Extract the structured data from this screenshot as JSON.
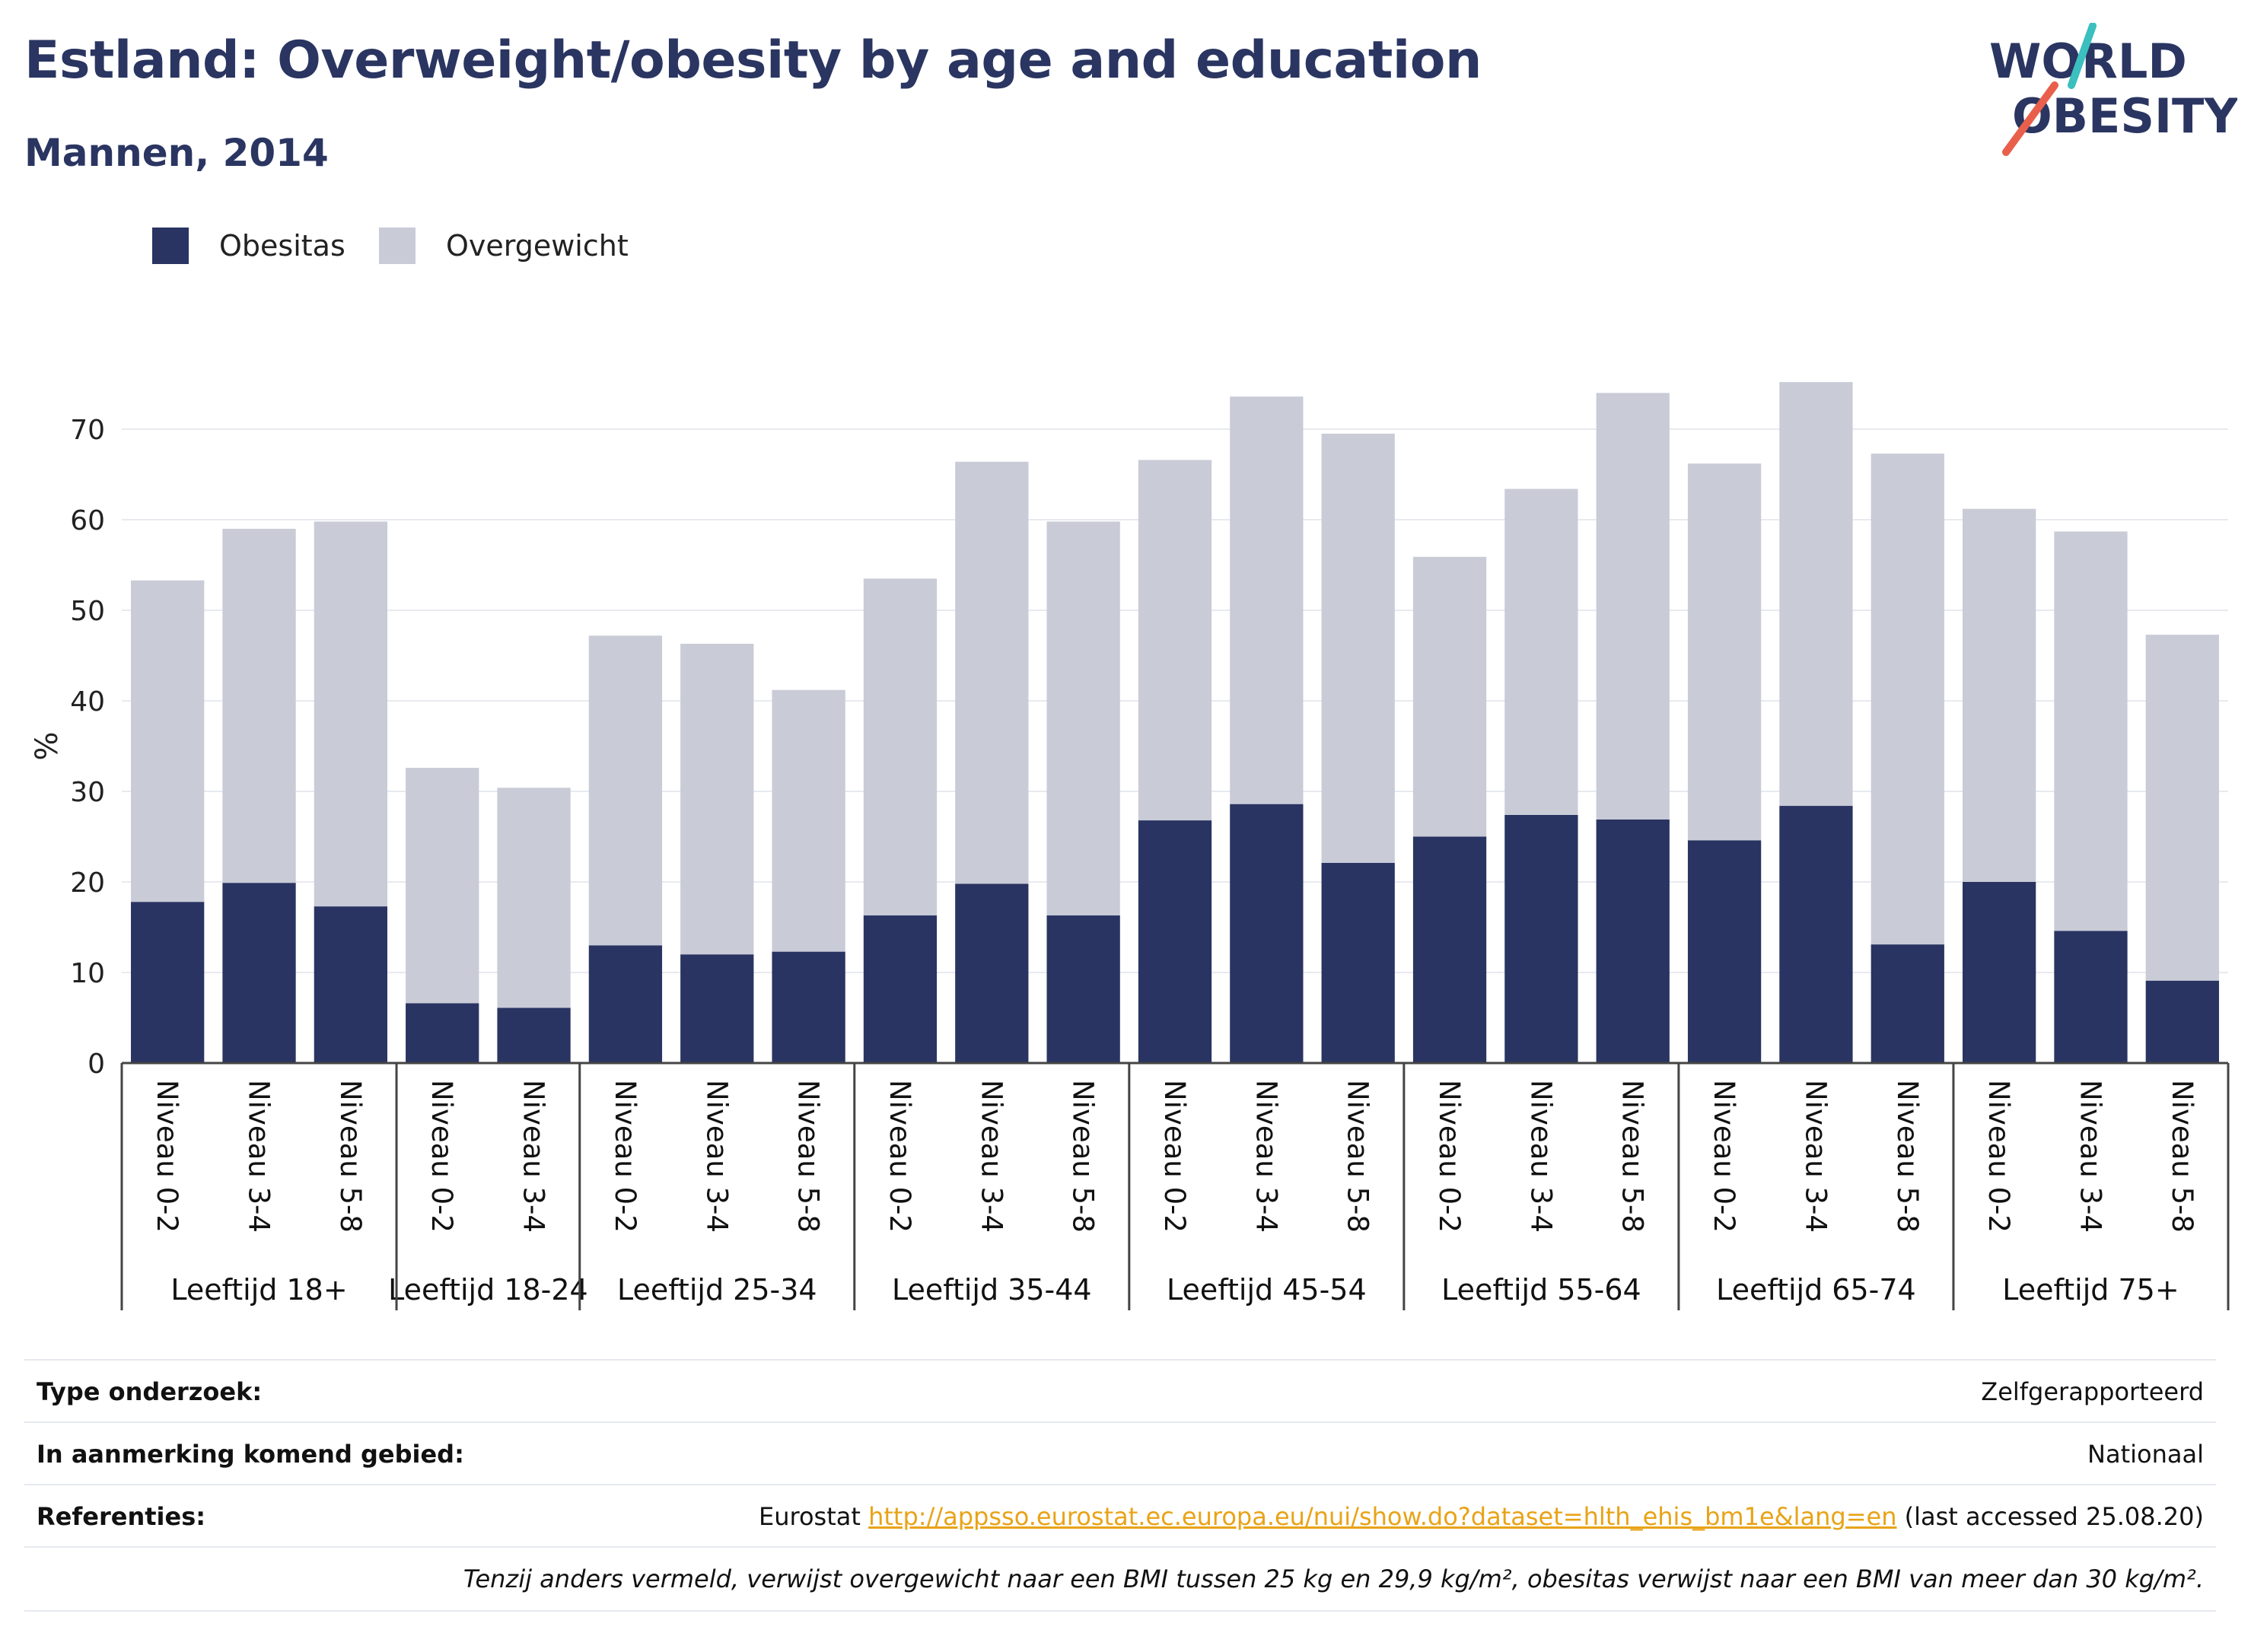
{
  "title": "Estland: Overweight/obesity by age and education",
  "subtitle": "Mannen, 2014",
  "logo": {
    "line1": "WORLD",
    "line2": "OBESITY"
  },
  "colors": {
    "obesity": "#293462",
    "overweight": "#c9cbd7",
    "title": "#2a3561",
    "link": "#e8a317",
    "logo_teal": "#3bbfbf",
    "logo_coral": "#e8604c"
  },
  "chart_data": {
    "type": "bar",
    "stacked": true,
    "ylabel": "%",
    "ylim": [
      0,
      76
    ],
    "yticks": [
      0,
      10,
      20,
      30,
      40,
      50,
      60,
      70
    ],
    "grid": true,
    "legend_position": "top-left",
    "groups": [
      {
        "label": "Leeftijd 18+",
        "categories": [
          "Niveau 0-2",
          "Niveau 3-4",
          "Niveau 5-8"
        ]
      },
      {
        "label": "Leeftijd 18-24",
        "categories": [
          "Niveau 0-2",
          "Niveau 3-4"
        ]
      },
      {
        "label": "Leeftijd 25-34",
        "categories": [
          "Niveau 0-2",
          "Niveau 3-4",
          "Niveau 5-8"
        ]
      },
      {
        "label": "Leeftijd 35-44",
        "categories": [
          "Niveau 0-2",
          "Niveau 3-4",
          "Niveau 5-8"
        ]
      },
      {
        "label": "Leeftijd 45-54",
        "categories": [
          "Niveau 0-2",
          "Niveau 3-4",
          "Niveau 5-8"
        ]
      },
      {
        "label": "Leeftijd 55-64",
        "categories": [
          "Niveau 0-2",
          "Niveau 3-4",
          "Niveau 5-8"
        ]
      },
      {
        "label": "Leeftijd 65-74",
        "categories": [
          "Niveau 0-2",
          "Niveau 3-4",
          "Niveau 5-8"
        ]
      },
      {
        "label": "Leeftijd 75+",
        "categories": [
          "Niveau 0-2",
          "Niveau 3-4",
          "Niveau 5-8"
        ]
      }
    ],
    "series": [
      {
        "name": "Obesitas",
        "values": [
          17.8,
          19.9,
          17.3,
          6.6,
          6.1,
          13.0,
          12.0,
          12.3,
          16.3,
          19.8,
          16.3,
          26.8,
          28.6,
          22.1,
          25.0,
          27.4,
          26.9,
          24.6,
          28.4,
          13.1,
          20.0,
          14.6,
          9.1
        ]
      },
      {
        "name": "Overgewicht",
        "values": [
          35.5,
          39.1,
          42.5,
          26.0,
          24.3,
          34.2,
          34.3,
          28.9,
          37.2,
          46.6,
          43.5,
          39.8,
          45.0,
          47.4,
          30.9,
          36.0,
          47.1,
          41.6,
          46.8,
          54.2,
          41.2,
          44.1,
          38.2
        ]
      }
    ]
  },
  "info": {
    "rows": [
      {
        "label": "Type onderzoek:",
        "value": "Zelfgerapporteerd"
      },
      {
        "label": "In aanmerking komend gebied:",
        "value": "Nationaal"
      },
      {
        "label": "Referenties:",
        "prefix": "Eurostat",
        "link": "http://appsso.eurostat.ec.europa.eu/nui/show.do?dataset=hlth_ehis_bm1e&lang=en",
        "suffix": "(last accessed 25.08.20)"
      }
    ],
    "note": "Tenzij anders vermeld, verwijst overgewicht naar een BMI tussen 25 kg en 29,9 kg/m², obesitas verwijst naar een BMI van meer dan 30 kg/m²."
  }
}
